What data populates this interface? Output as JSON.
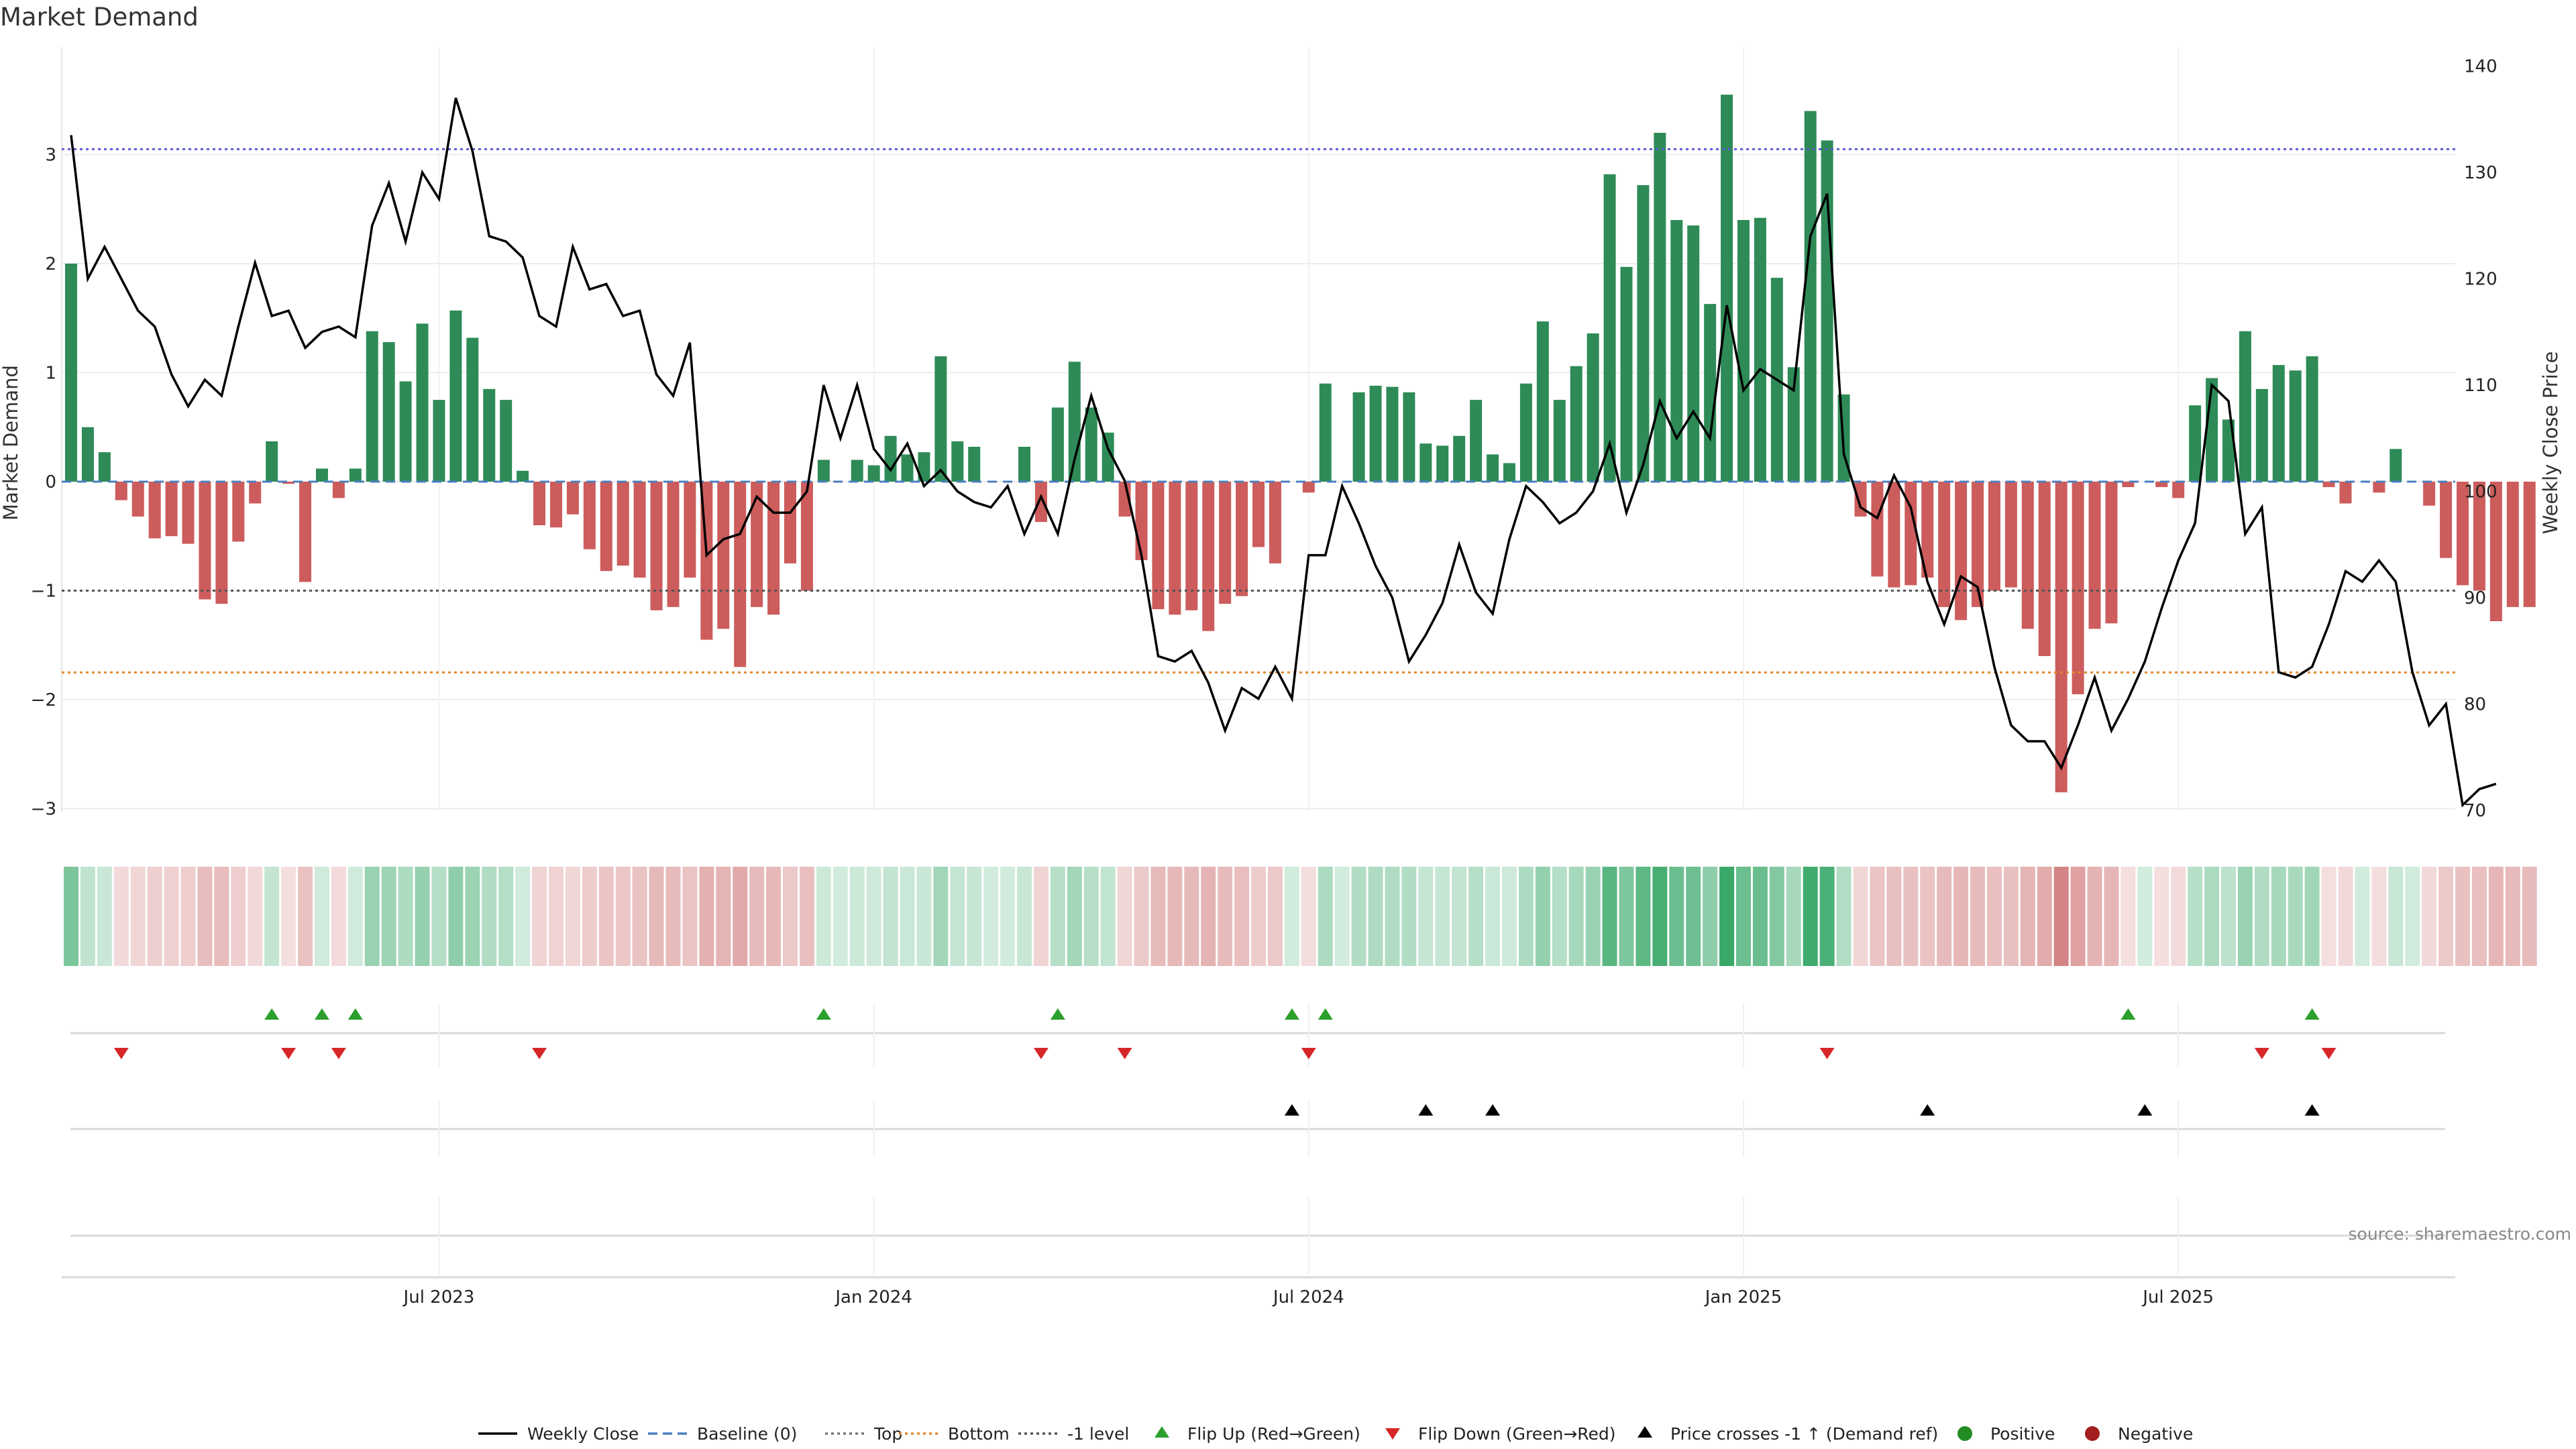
{
  "chart_data": {
    "type": "bar+line",
    "title": "Market Demand",
    "ylabel_left": "Market Demand",
    "ylabel_right": "Weekly Close Price",
    "ylim_left": [
      -3.0,
      3.6
    ],
    "ylim_right": [
      70,
      140
    ],
    "yticks_left": [
      -3,
      -2,
      -1,
      0,
      1,
      2,
      3
    ],
    "ytick_labels_left": [
      "−3",
      "−2",
      "−1",
      "0",
      "1",
      "2",
      "3"
    ],
    "yticks_right": [
      70,
      80,
      90,
      100,
      110,
      120,
      130,
      140
    ],
    "ytick_labels_right": [
      "70",
      "80",
      "90",
      "100",
      "110",
      "120",
      "130",
      "140"
    ],
    "x_ticks": [
      {
        "label": "Jul 2023",
        "week": 22
      },
      {
        "label": "Jan 2024",
        "week": 48
      },
      {
        "label": "Jul 2024",
        "week": 74
      },
      {
        "label": "Jan 2025",
        "week": 100
      },
      {
        "label": "Jul 2025",
        "week": 126
      }
    ],
    "reference_lines": {
      "top": 3.05,
      "bottom": -1.75,
      "minus_one": -1.0,
      "baseline": 0
    },
    "demand": [
      2.0,
      0.5,
      0.27,
      -0.17,
      -0.32,
      -0.52,
      -0.5,
      -0.57,
      -1.08,
      -1.12,
      -0.55,
      -0.2,
      0.37,
      -0.02,
      -0.92,
      0.12,
      -0.15,
      0.12,
      1.38,
      1.28,
      0.92,
      1.45,
      0.75,
      1.57,
      1.32,
      0.85,
      0.75,
      0.1,
      -0.4,
      -0.42,
      -0.3,
      -0.62,
      -0.82,
      -0.77,
      -0.88,
      -1.18,
      -1.15,
      -0.88,
      -1.45,
      -1.35,
      -1.7,
      -1.15,
      -1.22,
      -0.75,
      -1.0,
      0.2,
      0.0,
      0.2,
      0.15,
      0.42,
      0.25,
      0.27,
      1.15,
      0.37,
      0.32,
      0.0,
      0.0,
      0.32,
      -0.37,
      0.68,
      1.1,
      0.68,
      0.45,
      -0.32,
      -0.72,
      -1.17,
      -1.22,
      -1.18,
      -1.37,
      -1.12,
      -1.05,
      -0.6,
      -0.75,
      0.0,
      -0.1,
      0.9,
      0.0,
      0.82,
      0.88,
      0.87,
      0.82,
      0.35,
      0.33,
      0.42,
      0.75,
      0.25,
      0.17,
      0.9,
      1.47,
      0.75,
      1.06,
      1.36,
      2.82,
      1.97,
      2.72,
      3.2,
      2.4,
      2.35,
      1.63,
      3.55,
      2.4,
      2.42,
      1.87,
      1.05,
      3.4,
      3.13,
      0.8,
      -0.32,
      -0.87,
      -0.97,
      -0.95,
      -0.88,
      -1.15,
      -1.27,
      -1.15,
      -1.0,
      -0.97,
      -1.35,
      -1.6,
      -2.85,
      -1.95,
      -1.35,
      -1.3,
      -0.05,
      0.0,
      -0.05,
      -0.15,
      0.7,
      0.95,
      0.57,
      1.38,
      0.85,
      1.07,
      1.02,
      1.15,
      -0.05,
      -0.2,
      0.0,
      -0.1,
      0.3,
      0.0,
      -0.22,
      -0.7,
      -0.95,
      -1.0,
      -1.28,
      -1.15,
      -1.15
    ],
    "weekly_close": [
      133.5,
      120,
      123,
      120,
      117,
      115.5,
      111,
      108,
      110.5,
      109,
      115.5,
      121.5,
      116.5,
      117,
      113.5,
      115,
      115.5,
      114.5,
      125,
      129,
      123.5,
      130,
      127.5,
      137,
      132,
      124,
      123.5,
      122,
      116.5,
      115.5,
      123,
      119,
      119.5,
      116.5,
      117,
      111,
      109,
      114,
      94,
      95.5,
      96,
      99.5,
      98,
      98,
      100,
      110,
      105,
      110,
      104,
      102,
      104.5,
      100.5,
      102,
      100,
      99,
      98.5,
      100.5,
      96,
      99.5,
      96,
      103,
      109,
      104,
      101,
      94,
      84.5,
      84,
      85,
      82,
      77.5,
      81.5,
      80.5,
      83.5,
      80.5,
      94,
      94,
      100.5,
      97,
      93,
      90,
      84,
      86.5,
      89.5,
      95,
      90.5,
      88.5,
      95.5,
      100.5,
      99,
      97,
      98,
      100,
      104.5,
      98,
      102.5,
      108.5,
      105,
      107.5,
      105,
      117.5,
      109.5,
      111.5,
      110.5,
      109.5,
      124,
      128,
      103.5,
      98.5,
      97.5,
      101.5,
      98.5,
      91.5,
      87.5,
      92,
      91,
      83.5,
      78,
      76.5,
      76.5,
      74,
      78,
      82.5,
      77.5,
      80.5,
      84,
      89,
      93.5,
      97,
      110,
      108.5,
      96,
      98.5,
      83,
      82.5,
      83.5,
      87.5,
      92.5,
      91.5,
      93.5,
      91.5,
      83,
      78,
      80,
      70.5,
      72,
      72.5
    ],
    "flip_up_weeks": [
      12,
      15,
      17,
      45,
      59,
      73,
      75,
      123,
      134
    ],
    "flip_down_weeks": [
      3,
      13,
      16,
      28,
      58,
      63,
      74,
      105,
      131,
      135
    ],
    "price_cross_weeks": [
      73,
      81,
      85,
      111,
      124,
      134
    ],
    "legend": [
      "Weekly Close",
      "Baseline (0)",
      "Top",
      "Bottom",
      "-1 level",
      "Flip Up (Red→Green)",
      "Flip Down (Green→Red)",
      "Price crosses -1 ↑ (Demand ref)",
      "Positive",
      "Negative"
    ],
    "colors": {
      "positive": "#2e8b57",
      "negative": "#cd5c5c",
      "line": "#000000",
      "baseline": "#4a7fc0",
      "top": "#5b5bd6",
      "bottom": "#e08a2e",
      "minus_one": "#555555",
      "flip_up": "#2ca02c",
      "flip_down": "#d62728",
      "cross": "#000000",
      "positive_dot": "#228b22",
      "negative_dot": "#a31e1e"
    }
  },
  "source_text": "source: sharemaestro.com"
}
